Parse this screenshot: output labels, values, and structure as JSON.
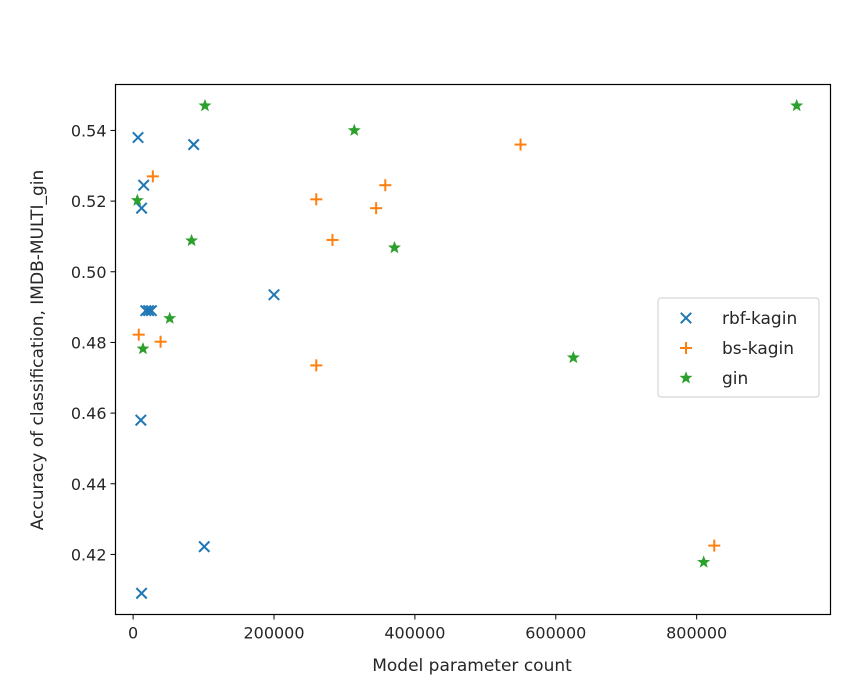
{
  "chart_data": {
    "type": "scatter",
    "title": "",
    "xlabel": "Model parameter count",
    "ylabel": "Accuracy of classification, IMDB-MULTI_gin",
    "xlim": [
      -25000,
      990000
    ],
    "ylim": [
      0.403,
      0.553
    ],
    "xticks": [
      0,
      200000,
      400000,
      600000,
      800000
    ],
    "xtick_labels": [
      "0",
      "200000",
      "400000",
      "600000",
      "800000"
    ],
    "yticks": [
      0.42,
      0.44,
      0.46,
      0.48,
      0.5,
      0.52,
      0.54
    ],
    "ytick_labels": [
      "0.42",
      "0.44",
      "0.46",
      "0.48",
      "0.50",
      "0.52",
      "0.54"
    ],
    "grid": false,
    "legend_position": "center-right",
    "series": [
      {
        "name": "rbf-kagin",
        "marker": "x",
        "color": "#1f77b4",
        "points": [
          [
            7000,
            0.538
          ],
          [
            86000,
            0.536
          ],
          [
            15000,
            0.5245
          ],
          [
            12000,
            0.518
          ],
          [
            200000,
            0.4935
          ],
          [
            18000,
            0.489
          ],
          [
            22000,
            0.489
          ],
          [
            26000,
            0.489
          ],
          [
            11000,
            0.458
          ],
          [
            101000,
            0.4222
          ],
          [
            12000,
            0.409
          ]
        ]
      },
      {
        "name": "bs-kagin",
        "marker": "+",
        "color": "#ff7f0e",
        "points": [
          [
            550000,
            0.536
          ],
          [
            28000,
            0.527
          ],
          [
            358000,
            0.5245
          ],
          [
            260000,
            0.5205
          ],
          [
            345000,
            0.518
          ],
          [
            283000,
            0.509
          ],
          [
            8000,
            0.4822
          ],
          [
            39000,
            0.4802
          ],
          [
            260000,
            0.4735
          ],
          [
            825000,
            0.4225
          ]
        ]
      },
      {
        "name": "gin",
        "marker": "star",
        "color": "#2ca02c",
        "points": [
          [
            102000,
            0.547
          ],
          [
            942000,
            0.547
          ],
          [
            314000,
            0.54
          ],
          [
            6000,
            0.5202
          ],
          [
            83000,
            0.5088
          ],
          [
            371000,
            0.5068
          ],
          [
            52000,
            0.4868
          ],
          [
            14000,
            0.4782
          ],
          [
            625000,
            0.4757
          ],
          [
            810000,
            0.4178
          ]
        ]
      }
    ]
  }
}
